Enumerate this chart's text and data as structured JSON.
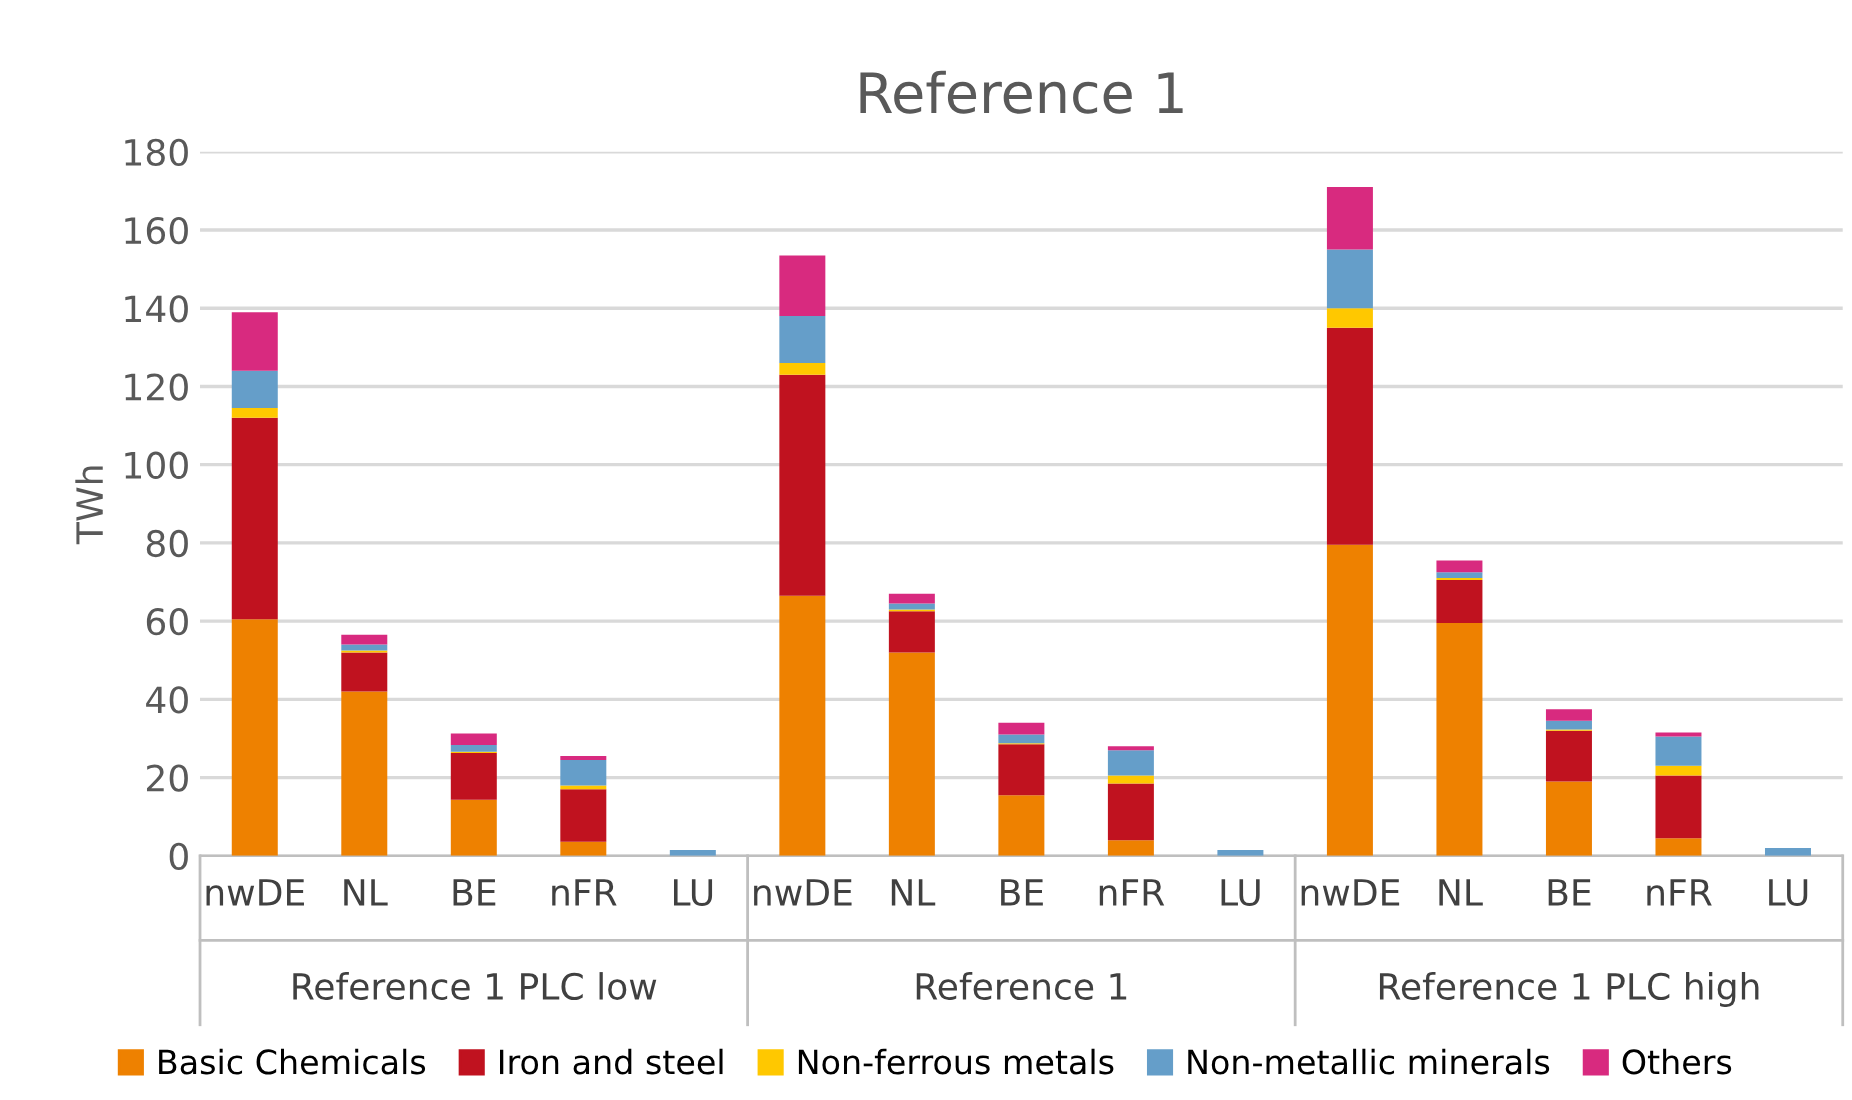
{
  "chart_data": {
    "type": "bar",
    "title": "Reference 1",
    "ylabel": "TWh",
    "stacked": true,
    "categories": [
      "nwDE",
      "NL",
      "BE",
      "nFR",
      "LU",
      "nwDE",
      "NL",
      "BE",
      "nFR",
      "LU",
      "nwDE",
      "NL",
      "BE",
      "nFR",
      "LU"
    ],
    "annotations": [
      "Reference 1 PLC low",
      "Reference 1",
      "Reference 1 PLC high"
    ],
    "series": [
      {
        "name": "Basic Chemicals",
        "color": "#ee8100",
        "values": [
          60.5,
          42,
          14.3,
          3.6,
          0,
          66.5,
          52,
          15.5,
          4,
          0,
          79.5,
          59.5,
          19,
          4.5,
          0
        ]
      },
      {
        "name": "Iron and steel",
        "color": "#c0121f",
        "values": [
          51.5,
          10,
          12,
          13.4,
          0,
          56.5,
          10.5,
          13,
          14.5,
          0,
          55.5,
          11,
          13,
          16,
          0
        ]
      },
      {
        "name": "Non-ferrous metals",
        "color": "#ffc800",
        "values": [
          2.5,
          0.5,
          0.3,
          1,
          0,
          3,
          0.5,
          0.3,
          2,
          0,
          5,
          0.5,
          0.3,
          2.5,
          0
        ]
      },
      {
        "name": "Non-metallic minerals",
        "color": "#659ec9",
        "values": [
          9.5,
          1.5,
          1.7,
          6.5,
          1.5,
          12,
          1.5,
          2.2,
          6.5,
          1.5,
          15,
          1.5,
          2.2,
          7.5,
          2
        ]
      },
      {
        "name": "Others",
        "color": "#d82a7f",
        "values": [
          15,
          2.5,
          3,
          1,
          0,
          15.5,
          2.5,
          3,
          1,
          0,
          16,
          3,
          3,
          1,
          0
        ]
      }
    ],
    "ylim": [
      0,
      180
    ],
    "yticks": [
      0,
      20,
      40,
      60,
      80,
      100,
      120,
      140,
      160,
      180
    ],
    "grid": "y",
    "legend": "bottom"
  }
}
